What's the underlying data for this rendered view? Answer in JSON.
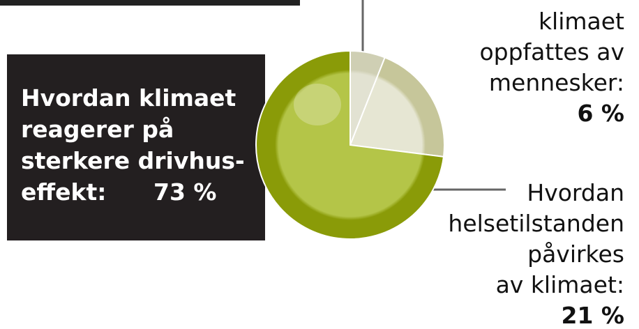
{
  "chart_data": {
    "type": "pie",
    "categories": [
      "klimaet\noppfattes av\nmennesker:",
      "Hvordan\nhelsetilstanden\npåvirkes\nav klimaet:",
      "Hvordan klimaet\nreagerer på\nsterkere drivhus-\neffekt:"
    ],
    "values": [
      6,
      21,
      73
    ],
    "value_labels": [
      "6 %",
      "21 %",
      "73 %"
    ],
    "colors": [
      "#cfcfb4",
      "#c6c69a",
      "#8a9b08"
    ],
    "inner_colors": [
      "#e2e2d2",
      "#e6e6d3",
      "#b4c548"
    ]
  }
}
